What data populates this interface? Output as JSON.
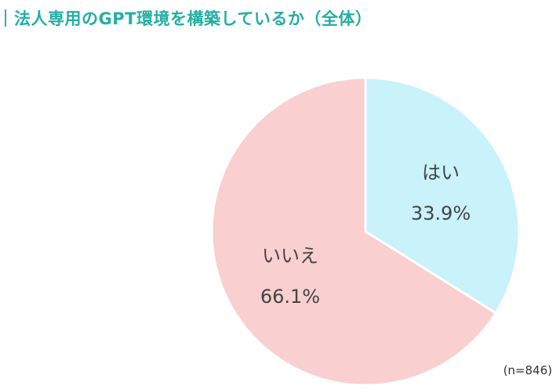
{
  "title": "法人専用のGPT環境を構築しているか（全体）",
  "sample_size": "(n=846)",
  "colors": {
    "title": "#23aea3",
    "accent": "#2bb3a8",
    "yes": "#c9f2fb",
    "no": "#f9cfd0",
    "label": "#444444"
  },
  "chart_data": {
    "type": "pie",
    "slices": [
      {
        "label": "はい",
        "value": 33.9,
        "display": "33.9%",
        "color": "#c9f2fb"
      },
      {
        "label": "いいえ",
        "value": 66.1,
        "display": "66.1%",
        "color": "#f9cfd0"
      }
    ],
    "start_angle": "12 o'clock",
    "direction": "clockwise",
    "legend": "none"
  }
}
